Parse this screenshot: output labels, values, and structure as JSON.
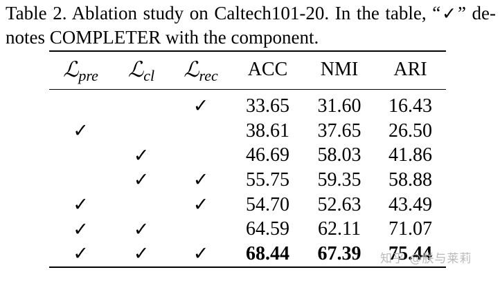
{
  "caption": {
    "line1_before": "Table 2. Ablation study on Caltech101-20.  In the table, “",
    "check_symbol": "✓",
    "line1_after": "” de-",
    "line2": "notes COMPLETER with the component."
  },
  "table": {
    "headers": [
      {
        "symbol": "ℒ",
        "sub": "pre"
      },
      {
        "symbol": "ℒ",
        "sub": "cl"
      },
      {
        "symbol": "ℒ",
        "sub": "rec"
      },
      {
        "text": "ACC"
      },
      {
        "text": "NMI"
      },
      {
        "text": "ARI"
      }
    ],
    "rows": [
      {
        "pre": "",
        "cl": "",
        "rec": "✓",
        "acc": "33.65",
        "nmi": "31.60",
        "ari": "16.43",
        "bold": false
      },
      {
        "pre": "✓",
        "cl": "",
        "rec": "",
        "acc": "38.61",
        "nmi": "37.65",
        "ari": "26.50",
        "bold": false
      },
      {
        "pre": "",
        "cl": "✓",
        "rec": "",
        "acc": "46.69",
        "nmi": "58.03",
        "ari": "41.86",
        "bold": false
      },
      {
        "pre": "",
        "cl": "✓",
        "rec": "✓",
        "acc": "55.75",
        "nmi": "59.35",
        "ari": "58.88",
        "bold": false
      },
      {
        "pre": "✓",
        "cl": "",
        "rec": "✓",
        "acc": "54.70",
        "nmi": "52.63",
        "ari": "43.49",
        "bold": false
      },
      {
        "pre": "✓",
        "cl": "✓",
        "rec": "",
        "acc": "64.59",
        "nmi": "62.11",
        "ari": "71.07",
        "bold": false
      },
      {
        "pre": "✓",
        "cl": "✓",
        "rec": "✓",
        "acc": "68.44",
        "nmi": "67.39",
        "ari": "75.44",
        "bold": true
      }
    ]
  },
  "watermark": "知乎 @朕与莱莉"
}
